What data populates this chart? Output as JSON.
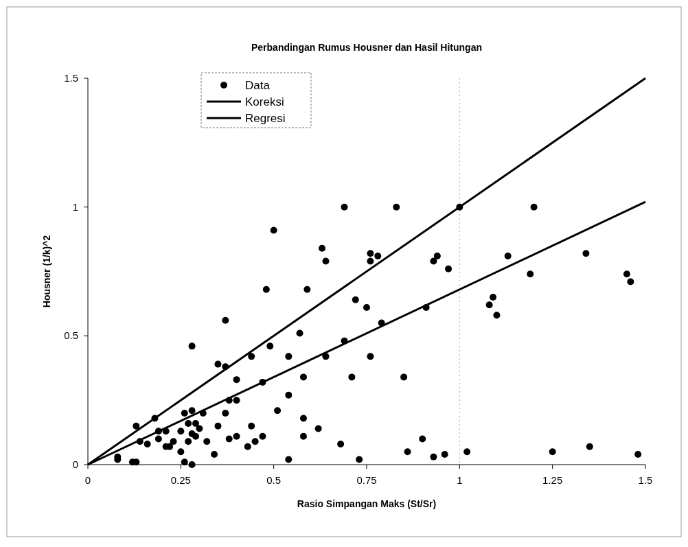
{
  "chart_data": {
    "type": "scatter",
    "title": "Perbandingan Rumus Housner dan Hasil Hitungan",
    "xlabel": "Rasio Simpangan Maks (St/Sr)",
    "ylabel": "Housner (1/k)^2",
    "xlim": [
      0,
      1.5
    ],
    "ylim": [
      0,
      1.5
    ],
    "xticks": [
      0,
      0.25,
      0.5,
      0.75,
      1,
      1.25,
      1.5
    ],
    "yticks": [
      0,
      0.5,
      1,
      1.5
    ],
    "legend": "top left",
    "marker": "circle",
    "ref_lines": [
      {
        "axis": "x",
        "value": 1,
        "color": "#aaaaaa",
        "line_style": "dotted"
      }
    ],
    "series": [
      {
        "name": "Data",
        "color": "#000000",
        "x": [
          0.5,
          0.69,
          0.83,
          1.0,
          0.63,
          0.64,
          0.76,
          0.78,
          0.76,
          0.94,
          0.93,
          0.97,
          1.2,
          1.13,
          1.34,
          1.19,
          1.45,
          1.46,
          1.09,
          1.08,
          1.1,
          1.25,
          1.35,
          1.48,
          0.59,
          0.72,
          0.75,
          0.91,
          0.79,
          0.57,
          0.69,
          0.54,
          0.64,
          0.76,
          0.58,
          0.71,
          0.85,
          0.54,
          0.58,
          0.62,
          0.58,
          0.68,
          0.9,
          0.54,
          0.73,
          0.86,
          0.93,
          0.96,
          1.02,
          0.48,
          0.37,
          0.28,
          0.49,
          0.44,
          0.35,
          0.37,
          0.4,
          0.47,
          0.28,
          0.26,
          0.31,
          0.18,
          0.13,
          0.37,
          0.38,
          0.4,
          0.51,
          0.27,
          0.29,
          0.25,
          0.3,
          0.28,
          0.29,
          0.27,
          0.35,
          0.4,
          0.38,
          0.44,
          0.45,
          0.43,
          0.47,
          0.32,
          0.34,
          0.14,
          0.16,
          0.19,
          0.19,
          0.21,
          0.21,
          0.23,
          0.22,
          0.25,
          0.26,
          0.28,
          0.08,
          0.08,
          0.12,
          0.13
        ],
        "values": [
          0.91,
          1.0,
          1.0,
          1.0,
          0.84,
          0.79,
          0.82,
          0.81,
          0.79,
          0.81,
          0.79,
          0.76,
          1.0,
          0.81,
          0.82,
          0.74,
          0.74,
          0.71,
          0.65,
          0.62,
          0.58,
          0.05,
          0.07,
          0.04,
          0.68,
          0.64,
          0.61,
          0.61,
          0.55,
          0.51,
          0.48,
          0.42,
          0.42,
          0.42,
          0.34,
          0.34,
          0.34,
          0.27,
          0.18,
          0.14,
          0.11,
          0.08,
          0.1,
          0.02,
          0.02,
          0.05,
          0.03,
          0.04,
          0.05,
          0.68,
          0.56,
          0.46,
          0.46,
          0.42,
          0.39,
          0.38,
          0.33,
          0.32,
          0.21,
          0.2,
          0.2,
          0.18,
          0.15,
          0.2,
          0.25,
          0.25,
          0.21,
          0.16,
          0.16,
          0.13,
          0.14,
          0.12,
          0.11,
          0.09,
          0.15,
          0.11,
          0.1,
          0.15,
          0.09,
          0.07,
          0.11,
          0.09,
          0.04,
          0.09,
          0.08,
          0.1,
          0.13,
          0.13,
          0.07,
          0.09,
          0.07,
          0.05,
          0.01,
          0.0,
          0.03,
          0.02,
          0.01,
          0.01
        ]
      },
      {
        "name": "Koreksi",
        "type": "line",
        "color": "#000000",
        "marker": "none",
        "x": [
          0,
          1.5
        ],
        "values": [
          0,
          1.5
        ]
      },
      {
        "name": "Regresi",
        "type": "line",
        "color": "#000000",
        "marker": "none",
        "x": [
          0,
          1.5
        ],
        "values": [
          0,
          1.02
        ]
      }
    ]
  }
}
